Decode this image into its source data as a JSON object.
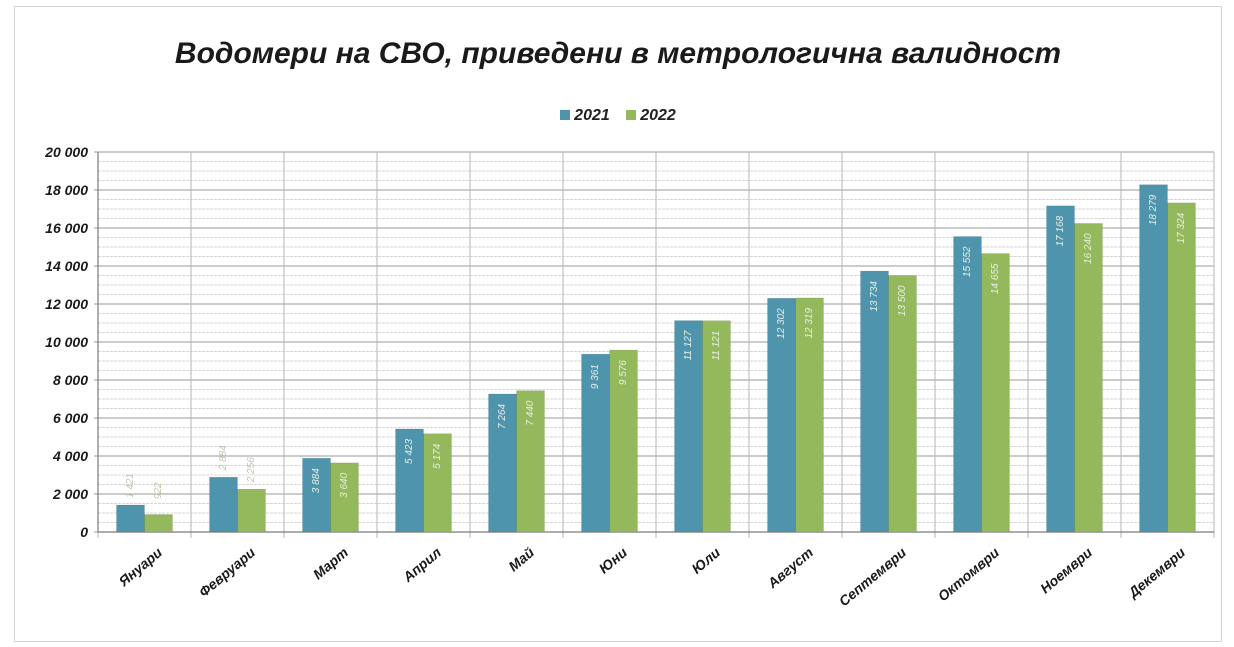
{
  "chart_data": {
    "type": "bar",
    "title": "Водомери на СВО, приведени в метрологична валидност",
    "xlabel": "",
    "ylabel": "",
    "ylim": [
      0,
      20000
    ],
    "yticks": [
      0,
      2000,
      4000,
      6000,
      8000,
      10000,
      12000,
      14000,
      16000,
      18000,
      20000
    ],
    "ytick_labels": [
      "0",
      "2 000",
      "4 000",
      "6 000",
      "8 000",
      "10 000",
      "12 000",
      "14 000",
      "16 000",
      "18 000",
      "20 000"
    ],
    "grid": true,
    "legend_position": "top-center",
    "categories": [
      "Януари",
      "Февруари",
      "Март",
      "Април",
      "Май",
      "Юни",
      "Юли",
      "Август",
      "Септември",
      "Октомври",
      "Ноември",
      "Декември"
    ],
    "series": [
      {
        "name": "2021",
        "color": "#4f94ad",
        "values": [
          1421,
          2884,
          3884,
          5423,
          7264,
          9361,
          11127,
          12302,
          13734,
          15552,
          17168,
          18279
        ],
        "labels": [
          "1 421",
          "2 884",
          "3 884",
          "5 423",
          "7 264",
          "9 361",
          "11 127",
          "12 302",
          "13 734",
          "15 552",
          "17 168",
          "18 279"
        ]
      },
      {
        "name": "2022",
        "color": "#94b85c",
        "values": [
          922,
          2256,
          3640,
          5174,
          7440,
          9576,
          11121,
          12319,
          13500,
          14655,
          16240,
          17324
        ],
        "labels": [
          "922",
          "2 256",
          "3 640",
          "5 174",
          "7 440",
          "9 576",
          "11 121",
          "12 319",
          "13 500",
          "14 655",
          "16 240",
          "17 324"
        ]
      }
    ]
  }
}
